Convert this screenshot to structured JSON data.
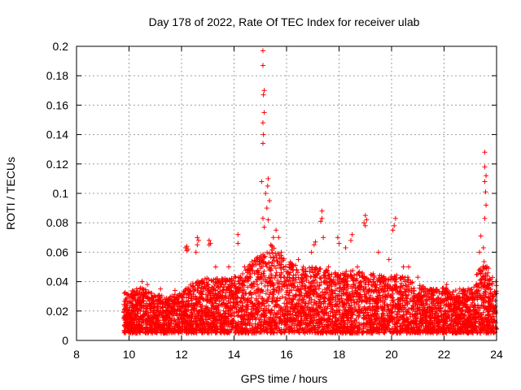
{
  "chart_data": {
    "type": "scatter",
    "title": "Day 178 of 2022, Rate Of TEC Index for receiver ulab",
    "xlabel": "GPS time / hours",
    "ylabel": "ROTI / TECUs",
    "xlim": [
      8,
      24
    ],
    "ylim": [
      0,
      0.2
    ],
    "x_ticks": [
      8,
      10,
      12,
      14,
      16,
      18,
      20,
      22,
      24
    ],
    "x_tick_labels": [
      "8",
      "10",
      "12",
      "14",
      "16",
      "18",
      "20",
      "22",
      "24"
    ],
    "y_ticks": [
      0,
      0.02,
      0.04,
      0.06,
      0.08,
      0.1,
      0.12,
      0.14,
      0.16,
      0.18,
      0.2
    ],
    "y_tick_labels": [
      "0",
      "0.02",
      "0.04",
      "0.06",
      "0.08",
      "0.1",
      "0.12",
      "0.14",
      "0.16",
      "0.18",
      "0.2"
    ],
    "grid": true,
    "marker": "+",
    "marker_color": "#ff0000",
    "series": [
      {
        "name": "",
        "points": [
          [
            15.1,
            0.197
          ],
          [
            15.1,
            0.187
          ],
          [
            15.15,
            0.17
          ],
          [
            15.12,
            0.167
          ],
          [
            15.15,
            0.155
          ],
          [
            15.1,
            0.148
          ],
          [
            15.12,
            0.14
          ],
          [
            15.1,
            0.134
          ],
          [
            15.3,
            0.11
          ],
          [
            15.28,
            0.105
          ],
          [
            15.05,
            0.108
          ],
          [
            15.2,
            0.1
          ],
          [
            15.35,
            0.095
          ],
          [
            15.25,
            0.09
          ],
          [
            15.1,
            0.083
          ],
          [
            15.3,
            0.082
          ],
          [
            15.6,
            0.075
          ],
          [
            15.5,
            0.07
          ],
          [
            15.15,
            0.077
          ],
          [
            15.4,
            0.065
          ],
          [
            23.55,
            0.128
          ],
          [
            23.55,
            0.118
          ],
          [
            23.6,
            0.112
          ],
          [
            23.55,
            0.108
          ],
          [
            23.58,
            0.101
          ],
          [
            23.6,
            0.092
          ],
          [
            23.55,
            0.083
          ],
          [
            23.4,
            0.071
          ],
          [
            23.5,
            0.063
          ],
          [
            23.35,
            0.06
          ],
          [
            17.35,
            0.088
          ],
          [
            17.35,
            0.083
          ],
          [
            17.3,
            0.081
          ],
          [
            17.4,
            0.07
          ],
          [
            17.1,
            0.067
          ],
          [
            17.05,
            0.065
          ],
          [
            19.0,
            0.085
          ],
          [
            19.05,
            0.082
          ],
          [
            18.95,
            0.08
          ],
          [
            19.0,
            0.078
          ],
          [
            20.15,
            0.083
          ],
          [
            20.1,
            0.078
          ],
          [
            20.05,
            0.075
          ],
          [
            14.15,
            0.072
          ],
          [
            14.15,
            0.066
          ],
          [
            12.6,
            0.07
          ],
          [
            12.65,
            0.068
          ],
          [
            12.6,
            0.065
          ],
          [
            12.55,
            0.06
          ],
          [
            12.2,
            0.064
          ],
          [
            12.15,
            0.063
          ],
          [
            12.25,
            0.062
          ],
          [
            12.2,
            0.061
          ],
          [
            13.05,
            0.068
          ],
          [
            13.1,
            0.066
          ],
          [
            13.05,
            0.065
          ],
          [
            17.95,
            0.07
          ],
          [
            18.0,
            0.066
          ],
          [
            18.5,
            0.072
          ],
          [
            18.45,
            0.068
          ],
          [
            18.25,
            0.063
          ],
          [
            16.45,
            0.055
          ],
          [
            16.95,
            0.06
          ],
          [
            15.7,
            0.07
          ],
          [
            15.8,
            0.06
          ],
          [
            19.5,
            0.06
          ],
          [
            20.45,
            0.05
          ],
          [
            20.65,
            0.05
          ],
          [
            13.3,
            0.05
          ],
          [
            14.4,
            0.05
          ],
          [
            14.7,
            0.05
          ],
          [
            13.8,
            0.05
          ],
          [
            17.6,
            0.05
          ],
          [
            18.7,
            0.05
          ],
          [
            19.9,
            0.055
          ],
          [
            21.0,
            0.043
          ],
          [
            11.75,
            0.034
          ],
          [
            22.1,
            0.038
          ],
          [
            22.6,
            0.035
          ],
          [
            10.5,
            0.04
          ],
          [
            10.7,
            0.038
          ],
          [
            11.2,
            0.035
          ]
        ]
      }
    ],
    "dense_band": {
      "description_free": true,
      "x_range": [
        9.8,
        24
      ],
      "y_min": 0.005,
      "segments": [
        [
          9.8,
          0.033
        ],
        [
          10.5,
          0.036
        ],
        [
          11.0,
          0.032
        ],
        [
          11.5,
          0.03
        ],
        [
          12.0,
          0.033
        ],
        [
          12.5,
          0.04
        ],
        [
          13.0,
          0.043
        ],
        [
          13.5,
          0.042
        ],
        [
          14.0,
          0.043
        ],
        [
          14.5,
          0.05
        ],
        [
          15.0,
          0.06
        ],
        [
          15.5,
          0.065
        ],
        [
          16.0,
          0.055
        ],
        [
          16.5,
          0.05
        ],
        [
          17.0,
          0.05
        ],
        [
          17.5,
          0.048
        ],
        [
          18.0,
          0.046
        ],
        [
          18.5,
          0.048
        ],
        [
          19.0,
          0.046
        ],
        [
          19.5,
          0.045
        ],
        [
          20.0,
          0.044
        ],
        [
          20.5,
          0.045
        ],
        [
          21.0,
          0.038
        ],
        [
          21.5,
          0.035
        ],
        [
          22.0,
          0.036
        ],
        [
          22.5,
          0.034
        ],
        [
          23.0,
          0.036
        ],
        [
          23.5,
          0.055
        ],
        [
          24.0,
          0.04
        ]
      ]
    }
  }
}
